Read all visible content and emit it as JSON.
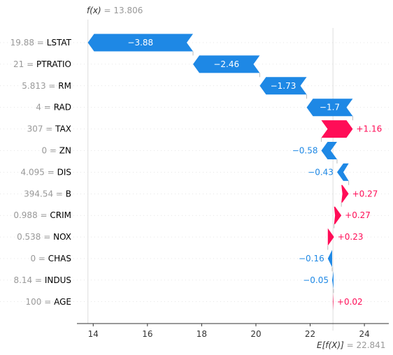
{
  "chart_data": {
    "type": "waterfall",
    "title": "",
    "fx": {
      "label": "f(x)",
      "sep": " = ",
      "value": "13.806"
    },
    "efx": {
      "label": "E[f(X)]",
      "sep": " = ",
      "value": "22.841"
    },
    "base_value": 22.841,
    "output_value": 13.806,
    "xlim": [
      13.4,
      24.9
    ],
    "xticks": [
      14,
      16,
      18,
      20,
      22,
      24
    ],
    "features": [
      {
        "value": "19.88",
        "name": "LSTAT",
        "effect": -3.88,
        "label": "−3.88"
      },
      {
        "value": "21",
        "name": "PTRATIO",
        "effect": -2.46,
        "label": "−2.46"
      },
      {
        "value": "5.813",
        "name": "RM",
        "effect": -1.73,
        "label": "−1.73"
      },
      {
        "value": "4",
        "name": "RAD",
        "effect": -1.7,
        "label": "−1.7"
      },
      {
        "value": "307",
        "name": "TAX",
        "effect": 1.16,
        "label": "+1.16"
      },
      {
        "value": "0",
        "name": "ZN",
        "effect": -0.58,
        "label": "−0.58"
      },
      {
        "value": "4.095",
        "name": "DIS",
        "effect": -0.43,
        "label": "−0.43"
      },
      {
        "value": "394.54",
        "name": "B",
        "effect": 0.27,
        "label": "+0.27"
      },
      {
        "value": "0.988",
        "name": "CRIM",
        "effect": 0.27,
        "label": "+0.27"
      },
      {
        "value": "0.538",
        "name": "NOX",
        "effect": 0.23,
        "label": "+0.23"
      },
      {
        "value": "0",
        "name": "CHAS",
        "effect": -0.16,
        "label": "−0.16"
      },
      {
        "value": "8.14",
        "name": "INDUS",
        "effect": -0.05,
        "label": "−0.05"
      },
      {
        "value": "100",
        "name": "AGE",
        "effect": 0.02,
        "label": "+0.02"
      }
    ],
    "colors": {
      "positive": "#ff0d57",
      "negative": "#1e88e5"
    }
  }
}
